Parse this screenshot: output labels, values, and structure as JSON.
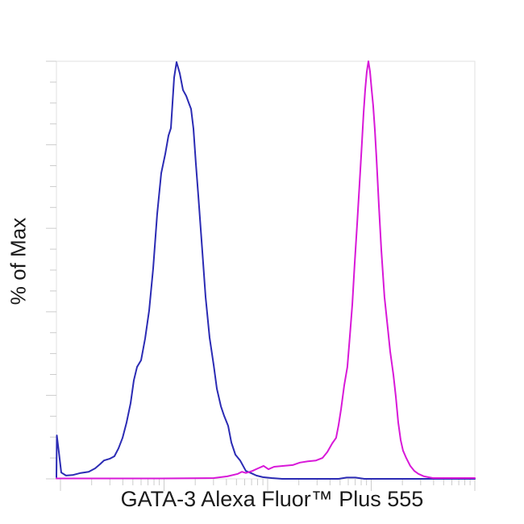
{
  "chart_data": {
    "type": "line",
    "subtype": "flow-cytometry-histogram-overlay",
    "title": "",
    "xlabel": "GATA-3 Alexa Fluor™ Plus 555",
    "ylabel": "% of Max",
    "legend": "none",
    "grid": false,
    "x_axis": {
      "scale": "log10",
      "decades": 4,
      "tick_labels_visible": false
    },
    "y_axis": {
      "range": [
        0,
        100
      ],
      "minor_step": 5,
      "major_step": 20,
      "tick_labels_visible": false
    },
    "style": {
      "frame_color": "#e0e0e0",
      "tick_color": "#cccccc",
      "label_color": "#1a1a1a",
      "blue": "#2b2bb4",
      "magenta": "#d818d8"
    },
    "series": [
      {
        "name": "blue",
        "color": "#2b2bb4",
        "points": [
          [
            -0.039,
            0.4
          ],
          [
            -0.035,
            10.4
          ],
          [
            -0.016,
            6.6
          ],
          [
            0.008,
            1.5
          ],
          [
            0.054,
            0.8
          ],
          [
            0.117,
            0.9
          ],
          [
            0.195,
            1.4
          ],
          [
            0.272,
            1.7
          ],
          [
            0.335,
            2.5
          ],
          [
            0.381,
            3.5
          ],
          [
            0.42,
            4.4
          ],
          [
            0.475,
            4.8
          ],
          [
            0.521,
            5.4
          ],
          [
            0.56,
            7.3
          ],
          [
            0.599,
            9.8
          ],
          [
            0.638,
            13.5
          ],
          [
            0.677,
            18.1
          ],
          [
            0.708,
            23.6
          ],
          [
            0.739,
            26.8
          ],
          [
            0.778,
            28.4
          ],
          [
            0.817,
            33.6
          ],
          [
            0.856,
            40.3
          ],
          [
            0.895,
            50.4
          ],
          [
            0.934,
            63.5
          ],
          [
            0.973,
            73.2
          ],
          [
            1.012,
            77.8
          ],
          [
            1.043,
            82.2
          ],
          [
            1.066,
            84.0
          ],
          [
            1.097,
            96.1
          ],
          [
            1.121,
            99.8
          ],
          [
            1.152,
            97.1
          ],
          [
            1.183,
            93.1
          ],
          [
            1.214,
            91.7
          ],
          [
            1.245,
            89.6
          ],
          [
            1.261,
            88.6
          ],
          [
            1.284,
            83.8
          ],
          [
            1.307,
            75.7
          ],
          [
            1.331,
            67.8
          ],
          [
            1.362,
            57.1
          ],
          [
            1.401,
            43.6
          ],
          [
            1.44,
            33.8
          ],
          [
            1.479,
            27.2
          ],
          [
            1.51,
            21.6
          ],
          [
            1.549,
            17.4
          ],
          [
            1.58,
            15.1
          ],
          [
            1.619,
            12.7
          ],
          [
            1.65,
            8.7
          ],
          [
            1.689,
            5.8
          ],
          [
            1.735,
            4.4
          ],
          [
            1.79,
            1.9
          ],
          [
            1.837,
            1.4
          ],
          [
            1.891,
            0.8
          ],
          [
            1.953,
            0.4
          ],
          [
            2.039,
            0.2
          ],
          [
            2.14,
            0
          ],
          [
            2.685,
            0
          ],
          [
            2.763,
            0.3
          ],
          [
            2.848,
            0.3
          ],
          [
            2.934,
            0
          ],
          [
            4.0,
            0
          ]
        ]
      },
      {
        "name": "magenta",
        "color": "#d818d8",
        "points": [
          [
            -0.039,
            0.1
          ],
          [
            0.973,
            0.1
          ],
          [
            1.479,
            0.2
          ],
          [
            1.611,
            0.6
          ],
          [
            1.712,
            1.2
          ],
          [
            1.751,
            1.7
          ],
          [
            1.79,
            1.4
          ],
          [
            1.852,
            1.9
          ],
          [
            1.907,
            2.5
          ],
          [
            1.961,
            3.1
          ],
          [
            2.008,
            2.3
          ],
          [
            2.062,
            2.9
          ],
          [
            2.156,
            3.1
          ],
          [
            2.241,
            3.3
          ],
          [
            2.311,
            3.9
          ],
          [
            2.389,
            4.2
          ],
          [
            2.467,
            4.4
          ],
          [
            2.529,
            5.0
          ],
          [
            2.576,
            6.4
          ],
          [
            2.623,
            8.5
          ],
          [
            2.661,
            9.8
          ],
          [
            2.685,
            12.9
          ],
          [
            2.708,
            16.6
          ],
          [
            2.739,
            22.4
          ],
          [
            2.77,
            26.8
          ],
          [
            2.794,
            34.2
          ],
          [
            2.817,
            41.7
          ],
          [
            2.84,
            51.4
          ],
          [
            2.864,
            61.0
          ],
          [
            2.887,
            70.7
          ],
          [
            2.91,
            80.3
          ],
          [
            2.926,
            87.6
          ],
          [
            2.942,
            93.2
          ],
          [
            2.957,
            97.5
          ],
          [
            2.973,
            100
          ],
          [
            2.988,
            97.5
          ],
          [
            3.004,
            93.2
          ],
          [
            3.019,
            89.4
          ],
          [
            3.035,
            83.6
          ],
          [
            3.051,
            76.4
          ],
          [
            3.074,
            65.4
          ],
          [
            3.097,
            54.8
          ],
          [
            3.128,
            43.6
          ],
          [
            3.16,
            35.9
          ],
          [
            3.183,
            30.5
          ],
          [
            3.214,
            24.9
          ],
          [
            3.237,
            19.7
          ],
          [
            3.261,
            13.5
          ],
          [
            3.284,
            9.3
          ],
          [
            3.307,
            6.8
          ],
          [
            3.338,
            5.0
          ],
          [
            3.377,
            3.1
          ],
          [
            3.416,
            1.9
          ],
          [
            3.455,
            1.2
          ],
          [
            3.51,
            0.6
          ],
          [
            3.595,
            0.2
          ],
          [
            4.0,
            0.2
          ]
        ]
      }
    ]
  }
}
